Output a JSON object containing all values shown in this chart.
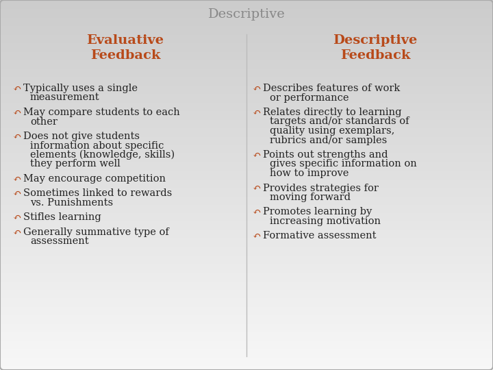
{
  "title": "Descriptive",
  "title_color": "#888888",
  "title_fontsize": 14,
  "border_color": "#aaaaaa",
  "left_header": "Evaluative\nFeedback",
  "right_header": "Descriptive\nFeedback",
  "header_color": "#b84a1a",
  "header_fontsize": 14,
  "bullet_color": "#b84a1a",
  "bullet_symbol": "↶",
  "body_color": "#222222",
  "body_fontsize": 10.5,
  "left_bullets": [
    [
      "Typically uses a single",
      "measurement"
    ],
    [
      "May compare students to each",
      "other"
    ],
    [
      "Does not give students",
      "information about specific",
      "elements (knowledge, skills)",
      "they perform well"
    ],
    [
      "May encourage competition"
    ],
    [
      "Sometimes linked to rewards",
      "vs. Punishments"
    ],
    [
      "Stifles learning"
    ],
    [
      "Generally summative type of",
      "assessment"
    ]
  ],
  "right_bullets": [
    [
      "Describes features of work",
      "or performance"
    ],
    [
      "Relates directly to learning",
      "targets and/or standards of",
      "quality using exemplars,",
      "rubrics and/or samples"
    ],
    [
      "Points out strengths and",
      "gives specific information on",
      "how to improve"
    ],
    [
      "Provides strategies for",
      "moving forward"
    ],
    [
      "Promotes learning by",
      "increasing motivation"
    ],
    [
      "Formative assessment"
    ]
  ],
  "bg_left": "#e8e8e8",
  "bg_right": "#f5f5f5",
  "bg_top": "#cccccc",
  "bg_bottom": "#f8f8f8"
}
